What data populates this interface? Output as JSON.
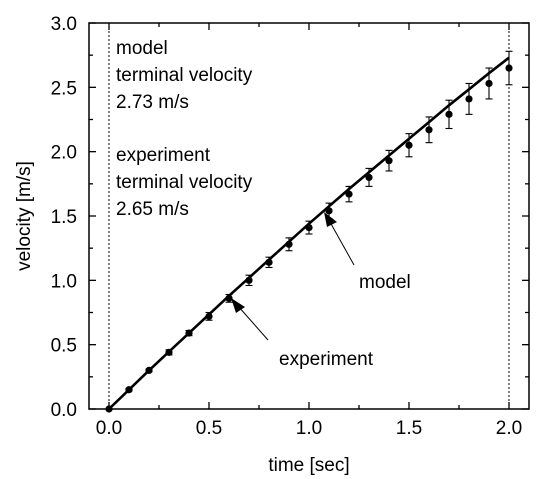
{
  "chart_data": {
    "type": "scatter",
    "xlabel": "time [sec]",
    "ylabel": "velocity [m/s]",
    "xlim": [
      -0.1,
      2.1
    ],
    "ylim": [
      0.0,
      3.0
    ],
    "xticks": [
      "0.0",
      "0.5",
      "1.0",
      "1.5",
      "2.0"
    ],
    "yticks": [
      "0.0",
      "0.5",
      "1.0",
      "1.5",
      "2.0",
      "2.5",
      "3.0"
    ],
    "grid": false,
    "vertical_lines_x": [
      0.0,
      2.0
    ],
    "series": [
      {
        "kind": "line",
        "label": "model",
        "x": [
          0.0,
          0.1,
          0.2,
          0.3,
          0.4,
          0.5,
          0.6,
          0.7,
          0.8,
          0.9,
          1.0,
          1.1,
          1.2,
          1.3,
          1.4,
          1.5,
          1.6,
          1.7,
          1.8,
          1.9,
          2.0
        ],
        "y": [
          0.0,
          0.15,
          0.3,
          0.445,
          0.59,
          0.735,
          0.88,
          1.02,
          1.16,
          1.3,
          1.44,
          1.575,
          1.71,
          1.84,
          1.97,
          2.1,
          2.23,
          2.36,
          2.485,
          2.61,
          2.73
        ]
      },
      {
        "kind": "points",
        "label": "experiment",
        "x": [
          0.0,
          0.1,
          0.2,
          0.3,
          0.4,
          0.5,
          0.6,
          0.7,
          0.8,
          0.9,
          1.0,
          1.1,
          1.2,
          1.3,
          1.4,
          1.5,
          1.6,
          1.7,
          1.8,
          1.9,
          2.0
        ],
        "y": [
          0.0,
          0.15,
          0.3,
          0.44,
          0.59,
          0.72,
          0.86,
          1.0,
          1.14,
          1.28,
          1.41,
          1.54,
          1.67,
          1.8,
          1.93,
          2.05,
          2.17,
          2.29,
          2.41,
          2.53,
          2.65
        ],
        "err": [
          0.0,
          0.01,
          0.01,
          0.02,
          0.02,
          0.03,
          0.03,
          0.04,
          0.04,
          0.05,
          0.05,
          0.06,
          0.06,
          0.07,
          0.08,
          0.09,
          0.1,
          0.11,
          0.12,
          0.12,
          0.13
        ]
      }
    ],
    "annotations": {
      "model_block": [
        "model",
        "terminal velocity",
        "2.73 m/s"
      ],
      "experiment_block": [
        "experiment",
        "terminal velocity",
        "2.65 m/s"
      ],
      "model_arrow_label": "model",
      "experiment_arrow_label": "experiment"
    }
  }
}
